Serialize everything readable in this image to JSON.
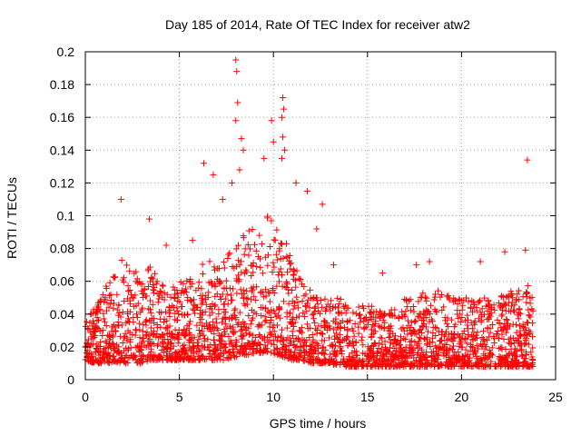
{
  "chart_data": {
    "type": "scatter",
    "title": "Day 185 of 2014, Rate Of TEC Index for receiver atw2",
    "xlabel": "GPS time / hours",
    "ylabel": "ROTI / TECUs",
    "xlim": [
      0,
      25
    ],
    "ylim": [
      0,
      0.2
    ],
    "xticks": [
      0,
      5,
      10,
      15,
      20,
      25
    ],
    "xtick_labels": [
      "0",
      "5",
      "10",
      "15",
      "20",
      "25"
    ],
    "yticks": [
      0,
      0.02,
      0.04,
      0.06,
      0.08,
      0.1,
      0.12,
      0.14,
      0.16,
      0.18,
      0.2
    ],
    "ytick_labels": [
      "0",
      "0.02",
      "0.04",
      "0.06",
      "0.08",
      "0.1",
      "0.12",
      "0.14",
      "0.16",
      "0.18",
      "0.2"
    ],
    "grid": true,
    "marker": "+",
    "color": "#ff0000",
    "series": [
      {
        "name": "ROTI",
        "envelope": {
          "x": [
            0,
            0.5,
            1,
            1.5,
            2,
            2.5,
            3,
            3.5,
            4,
            4.5,
            5,
            5.5,
            6,
            6.5,
            7,
            7.5,
            8,
            8.5,
            9,
            9.5,
            10,
            10.5,
            11,
            11.5,
            12,
            12.5,
            13,
            13.5,
            14,
            14.5,
            15,
            15.5,
            16,
            16.5,
            17,
            17.5,
            18,
            18.5,
            19,
            19.5,
            20,
            20.5,
            21,
            21.5,
            22,
            22.5,
            23,
            23.5,
            23.8
          ],
          "typical_max": [
            0.035,
            0.045,
            0.055,
            0.065,
            0.075,
            0.07,
            0.065,
            0.07,
            0.06,
            0.055,
            0.06,
            0.065,
            0.07,
            0.075,
            0.07,
            0.075,
            0.085,
            0.09,
            0.095,
            0.1,
            0.1,
            0.09,
            0.075,
            0.06,
            0.055,
            0.05,
            0.05,
            0.05,
            0.045,
            0.045,
            0.045,
            0.045,
            0.045,
            0.045,
            0.05,
            0.05,
            0.055,
            0.055,
            0.055,
            0.05,
            0.05,
            0.05,
            0.05,
            0.05,
            0.05,
            0.055,
            0.055,
            0.06,
            0.05
          ],
          "typical_min": [
            0.012,
            0.01,
            0.01,
            0.01,
            0.01,
            0.01,
            0.01,
            0.012,
            0.012,
            0.012,
            0.012,
            0.012,
            0.012,
            0.012,
            0.012,
            0.012,
            0.014,
            0.015,
            0.016,
            0.016,
            0.016,
            0.014,
            0.012,
            0.012,
            0.01,
            0.01,
            0.01,
            0.008,
            0.008,
            0.008,
            0.008,
            0.008,
            0.008,
            0.008,
            0.008,
            0.008,
            0.008,
            0.008,
            0.008,
            0.008,
            0.008,
            0.008,
            0.008,
            0.008,
            0.008,
            0.008,
            0.008,
            0.008,
            0.008
          ]
        },
        "outliers": [
          {
            "x": 1.9,
            "y": 0.11
          },
          {
            "x": 3.4,
            "y": 0.098
          },
          {
            "x": 4.3,
            "y": 0.082
          },
          {
            "x": 5.7,
            "y": 0.085
          },
          {
            "x": 6.3,
            "y": 0.132
          },
          {
            "x": 6.8,
            "y": 0.125
          },
          {
            "x": 7.3,
            "y": 0.11
          },
          {
            "x": 7.8,
            "y": 0.12
          },
          {
            "x": 8.0,
            "y": 0.195
          },
          {
            "x": 8.05,
            "y": 0.188
          },
          {
            "x": 8.1,
            "y": 0.169
          },
          {
            "x": 8.0,
            "y": 0.158
          },
          {
            "x": 8.3,
            "y": 0.147
          },
          {
            "x": 8.4,
            "y": 0.14
          },
          {
            "x": 8.2,
            "y": 0.128
          },
          {
            "x": 9.5,
            "y": 0.135
          },
          {
            "x": 9.9,
            "y": 0.158
          },
          {
            "x": 10.0,
            "y": 0.145
          },
          {
            "x": 10.5,
            "y": 0.172
          },
          {
            "x": 10.55,
            "y": 0.165
          },
          {
            "x": 10.45,
            "y": 0.16
          },
          {
            "x": 10.5,
            "y": 0.148
          },
          {
            "x": 10.6,
            "y": 0.14
          },
          {
            "x": 10.45,
            "y": 0.135
          },
          {
            "x": 11.2,
            "y": 0.12
          },
          {
            "x": 11.8,
            "y": 0.115
          },
          {
            "x": 12.6,
            "y": 0.107
          },
          {
            "x": 12.3,
            "y": 0.092
          },
          {
            "x": 13.2,
            "y": 0.07
          },
          {
            "x": 15.8,
            "y": 0.065
          },
          {
            "x": 17.6,
            "y": 0.07
          },
          {
            "x": 18.3,
            "y": 0.072
          },
          {
            "x": 21.0,
            "y": 0.072
          },
          {
            "x": 22.3,
            "y": 0.078
          },
          {
            "x": 23.4,
            "y": 0.079
          },
          {
            "x": 23.5,
            "y": 0.134
          }
        ]
      }
    ]
  }
}
